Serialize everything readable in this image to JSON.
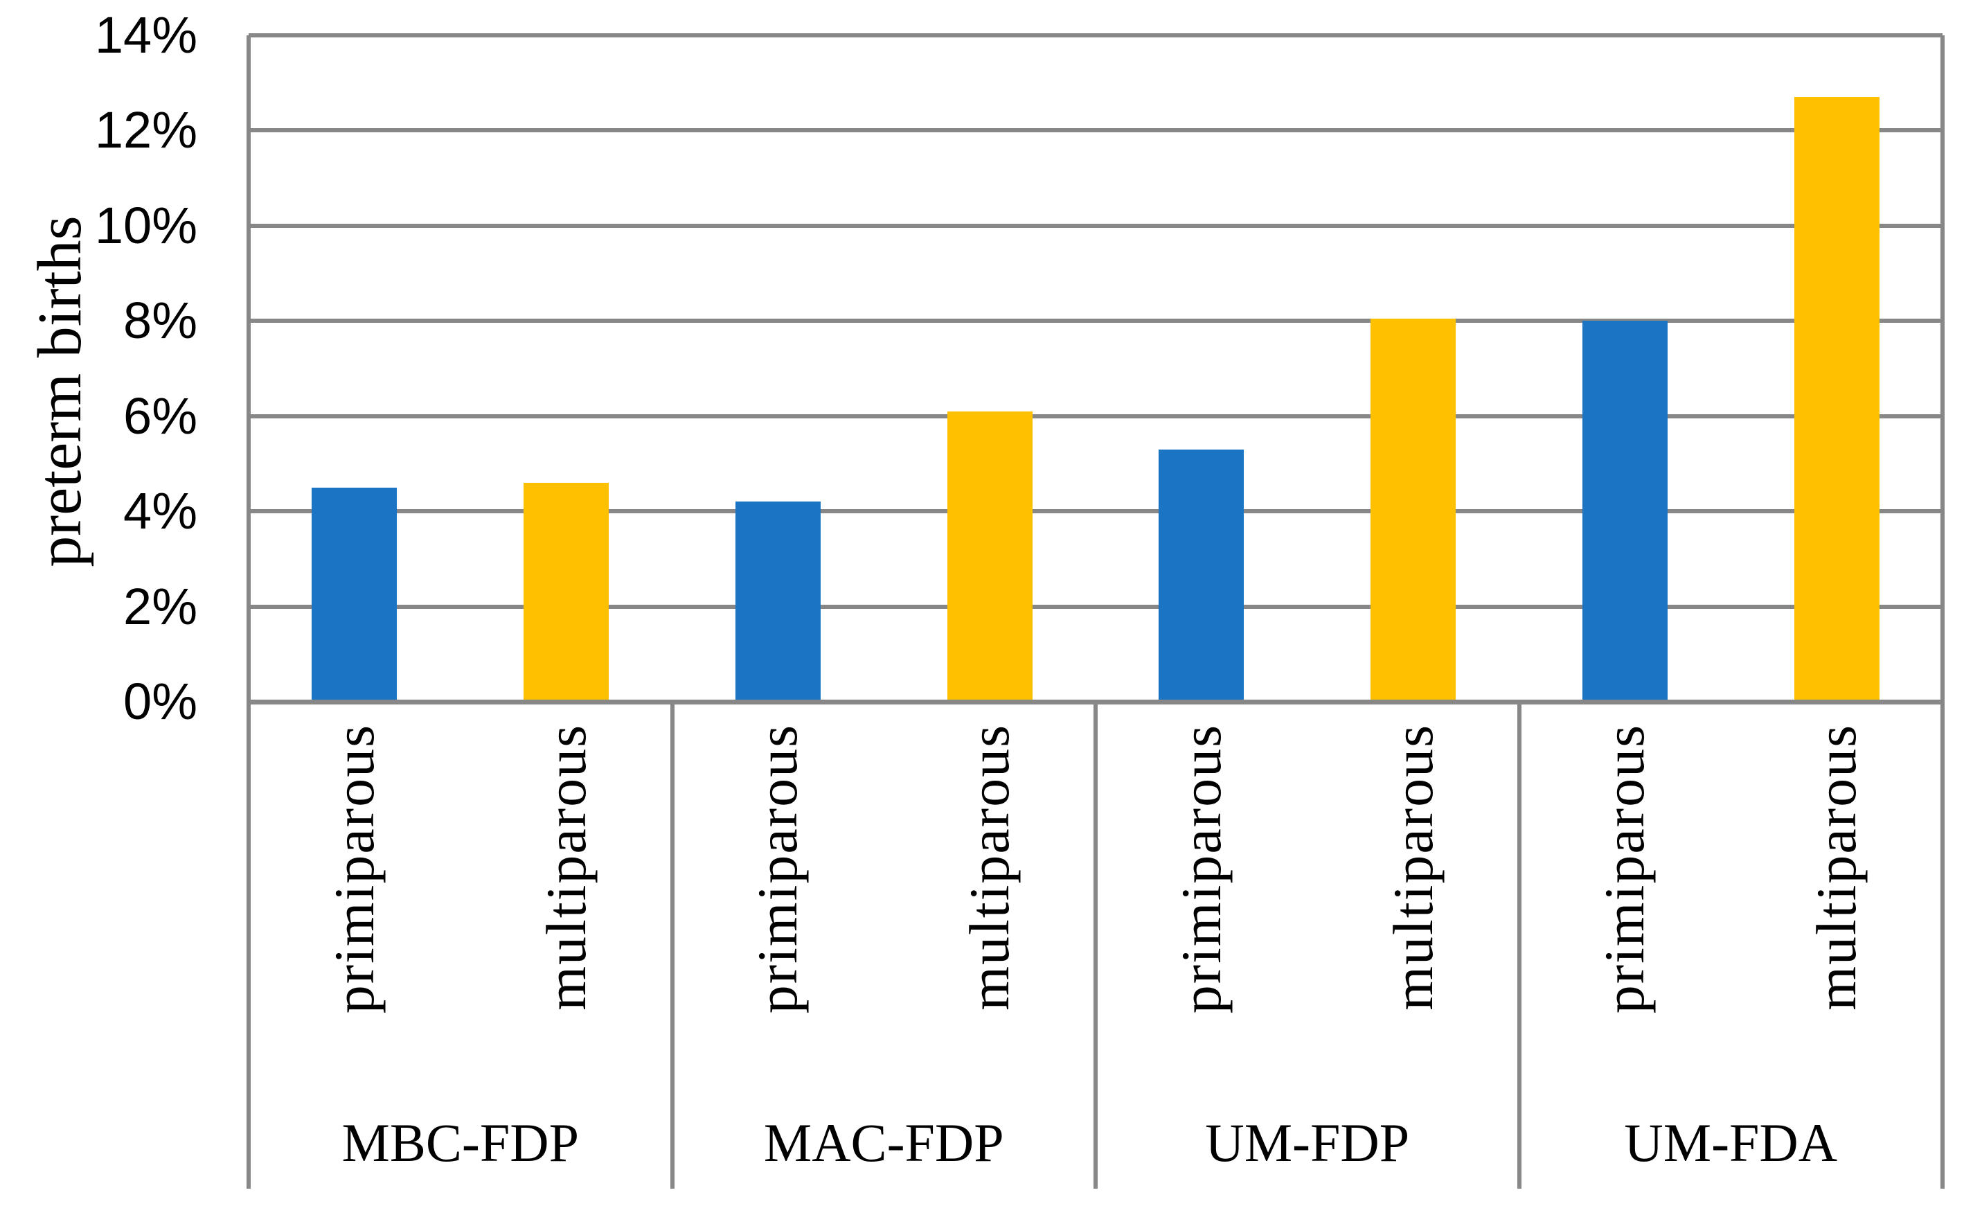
{
  "figure": {
    "background": "#ffffff"
  },
  "chart_data": {
    "type": "bar",
    "title": "",
    "ylabel": "preterm births",
    "xlabel": "",
    "ylim": [
      0,
      14
    ],
    "ytick_step": 2,
    "ytick_labels": [
      "0%",
      "2%",
      "4%",
      "6%",
      "8%",
      "10%",
      "12%",
      "14%"
    ],
    "grid": true,
    "legend": "none",
    "categories": [
      "MBC-FDP",
      "MAC-FDP",
      "UM-FDP",
      "UM-FDA"
    ],
    "subcategories": [
      "primiparous",
      "multiparous"
    ],
    "series": [
      {
        "name": "primiparous",
        "color": "#1C74C5",
        "values": [
          4.5,
          4.2,
          5.3,
          8.0
        ]
      },
      {
        "name": "multiparous",
        "color": "#FFC000",
        "values": [
          4.6,
          6.1,
          8.05,
          12.7
        ]
      }
    ],
    "colors": {
      "gridline": "#878787",
      "axis": "#878787",
      "text": "#000000"
    }
  }
}
